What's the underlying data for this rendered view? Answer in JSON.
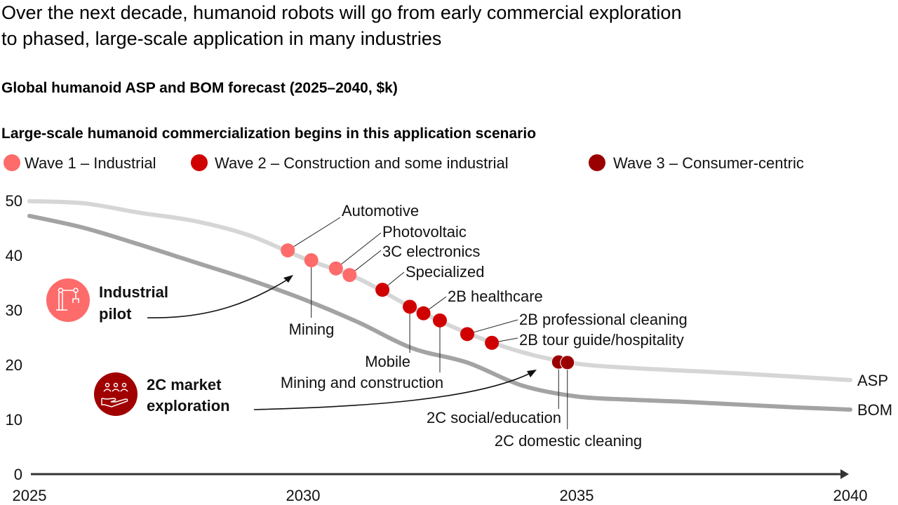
{
  "title_lines": [
    "Over the next decade, humanoid robots will go from early commercial exploration",
    "to phased, large-scale application in many industries"
  ],
  "subtitle": "Global humanoid ASP and BOM forecast (2025–2040, $k)",
  "legend": {
    "heading": "Large-scale humanoid commercialization begins in this application scenario",
    "items": [
      {
        "label": "Wave 1 – Industrial",
        "color": "#fe6b6b"
      },
      {
        "label": "Wave 2 – Construction and some industrial",
        "color": "#d00000"
      },
      {
        "label": "Wave 3 – Consumer-centric",
        "color": "#9a0000"
      }
    ]
  },
  "phases": [
    {
      "lines": [
        "Industrial",
        "pilot"
      ],
      "icon": "robot-arm-icon",
      "color": "#fe6b6b"
    },
    {
      "lines": [
        "2C market",
        "exploration"
      ],
      "icon": "people-hand-icon",
      "color": "#a00000"
    }
  ],
  "chart_data": {
    "type": "line",
    "x_ticks": [
      "2025",
      "2030",
      "2035",
      "2040"
    ],
    "y_ticks": [
      "0",
      "10",
      "20",
      "30",
      "40",
      "50"
    ],
    "xlim": [
      2025,
      2040
    ],
    "ylim": [
      0,
      50
    ],
    "grid": false,
    "series": [
      {
        "name": "ASP",
        "color": "#d6d6d6",
        "x": [
          2025,
          2026,
          2027,
          2028,
          2029,
          2030,
          2031,
          2032,
          2033,
          2034,
          2035,
          2036,
          2037,
          2038,
          2039,
          2040
        ],
        "y": [
          49.9,
          49.5,
          47.8,
          46.3,
          43.7,
          39.5,
          35.8,
          30.4,
          25.8,
          22.3,
          20.2,
          19.4,
          18.9,
          18.4,
          17.8,
          17.2
        ]
      },
      {
        "name": "BOM",
        "color": "#a3a3a3",
        "x": [
          2025,
          2026,
          2027,
          2028,
          2029,
          2030,
          2031,
          2032,
          2033,
          2034,
          2035,
          2036,
          2037,
          2038,
          2039,
          2040
        ],
        "y": [
          47.2,
          45.0,
          42.0,
          38.8,
          35.6,
          32.0,
          27.8,
          23.0,
          20.4,
          16.2,
          14.2,
          13.6,
          13.2,
          12.7,
          12.2,
          11.8
        ]
      }
    ],
    "points": [
      {
        "label": "Automotive",
        "wave": 1,
        "x": 2029.72,
        "y": 40.9
      },
      {
        "label": "Mining",
        "wave": 1,
        "x": 2030.15,
        "y": 39.1
      },
      {
        "label": "Photovoltaic",
        "wave": 1,
        "x": 2030.6,
        "y": 37.6
      },
      {
        "label": "3C electronics",
        "wave": 1,
        "x": 2030.85,
        "y": 36.4
      },
      {
        "label": "Specialized",
        "wave": 2,
        "x": 2031.45,
        "y": 33.7
      },
      {
        "label": "Mobile",
        "wave": 2,
        "x": 2031.95,
        "y": 30.6
      },
      {
        "label": "2B healthcare",
        "wave": 2,
        "x": 2032.2,
        "y": 29.4
      },
      {
        "label": "Mining and construction",
        "wave": 2,
        "x": 2032.5,
        "y": 28.1
      },
      {
        "label": "2B professional cleaning",
        "wave": 2,
        "x": 2033.0,
        "y": 25.6
      },
      {
        "label": "2B tour guide/hospitality",
        "wave": 2,
        "x": 2033.45,
        "y": 24.0
      },
      {
        "label": "2C social/education",
        "wave": 3,
        "x": 2034.67,
        "y": 20.5
      },
      {
        "label": "2C domestic cleaning",
        "wave": 3,
        "x": 2034.83,
        "y": 20.4
      }
    ]
  }
}
